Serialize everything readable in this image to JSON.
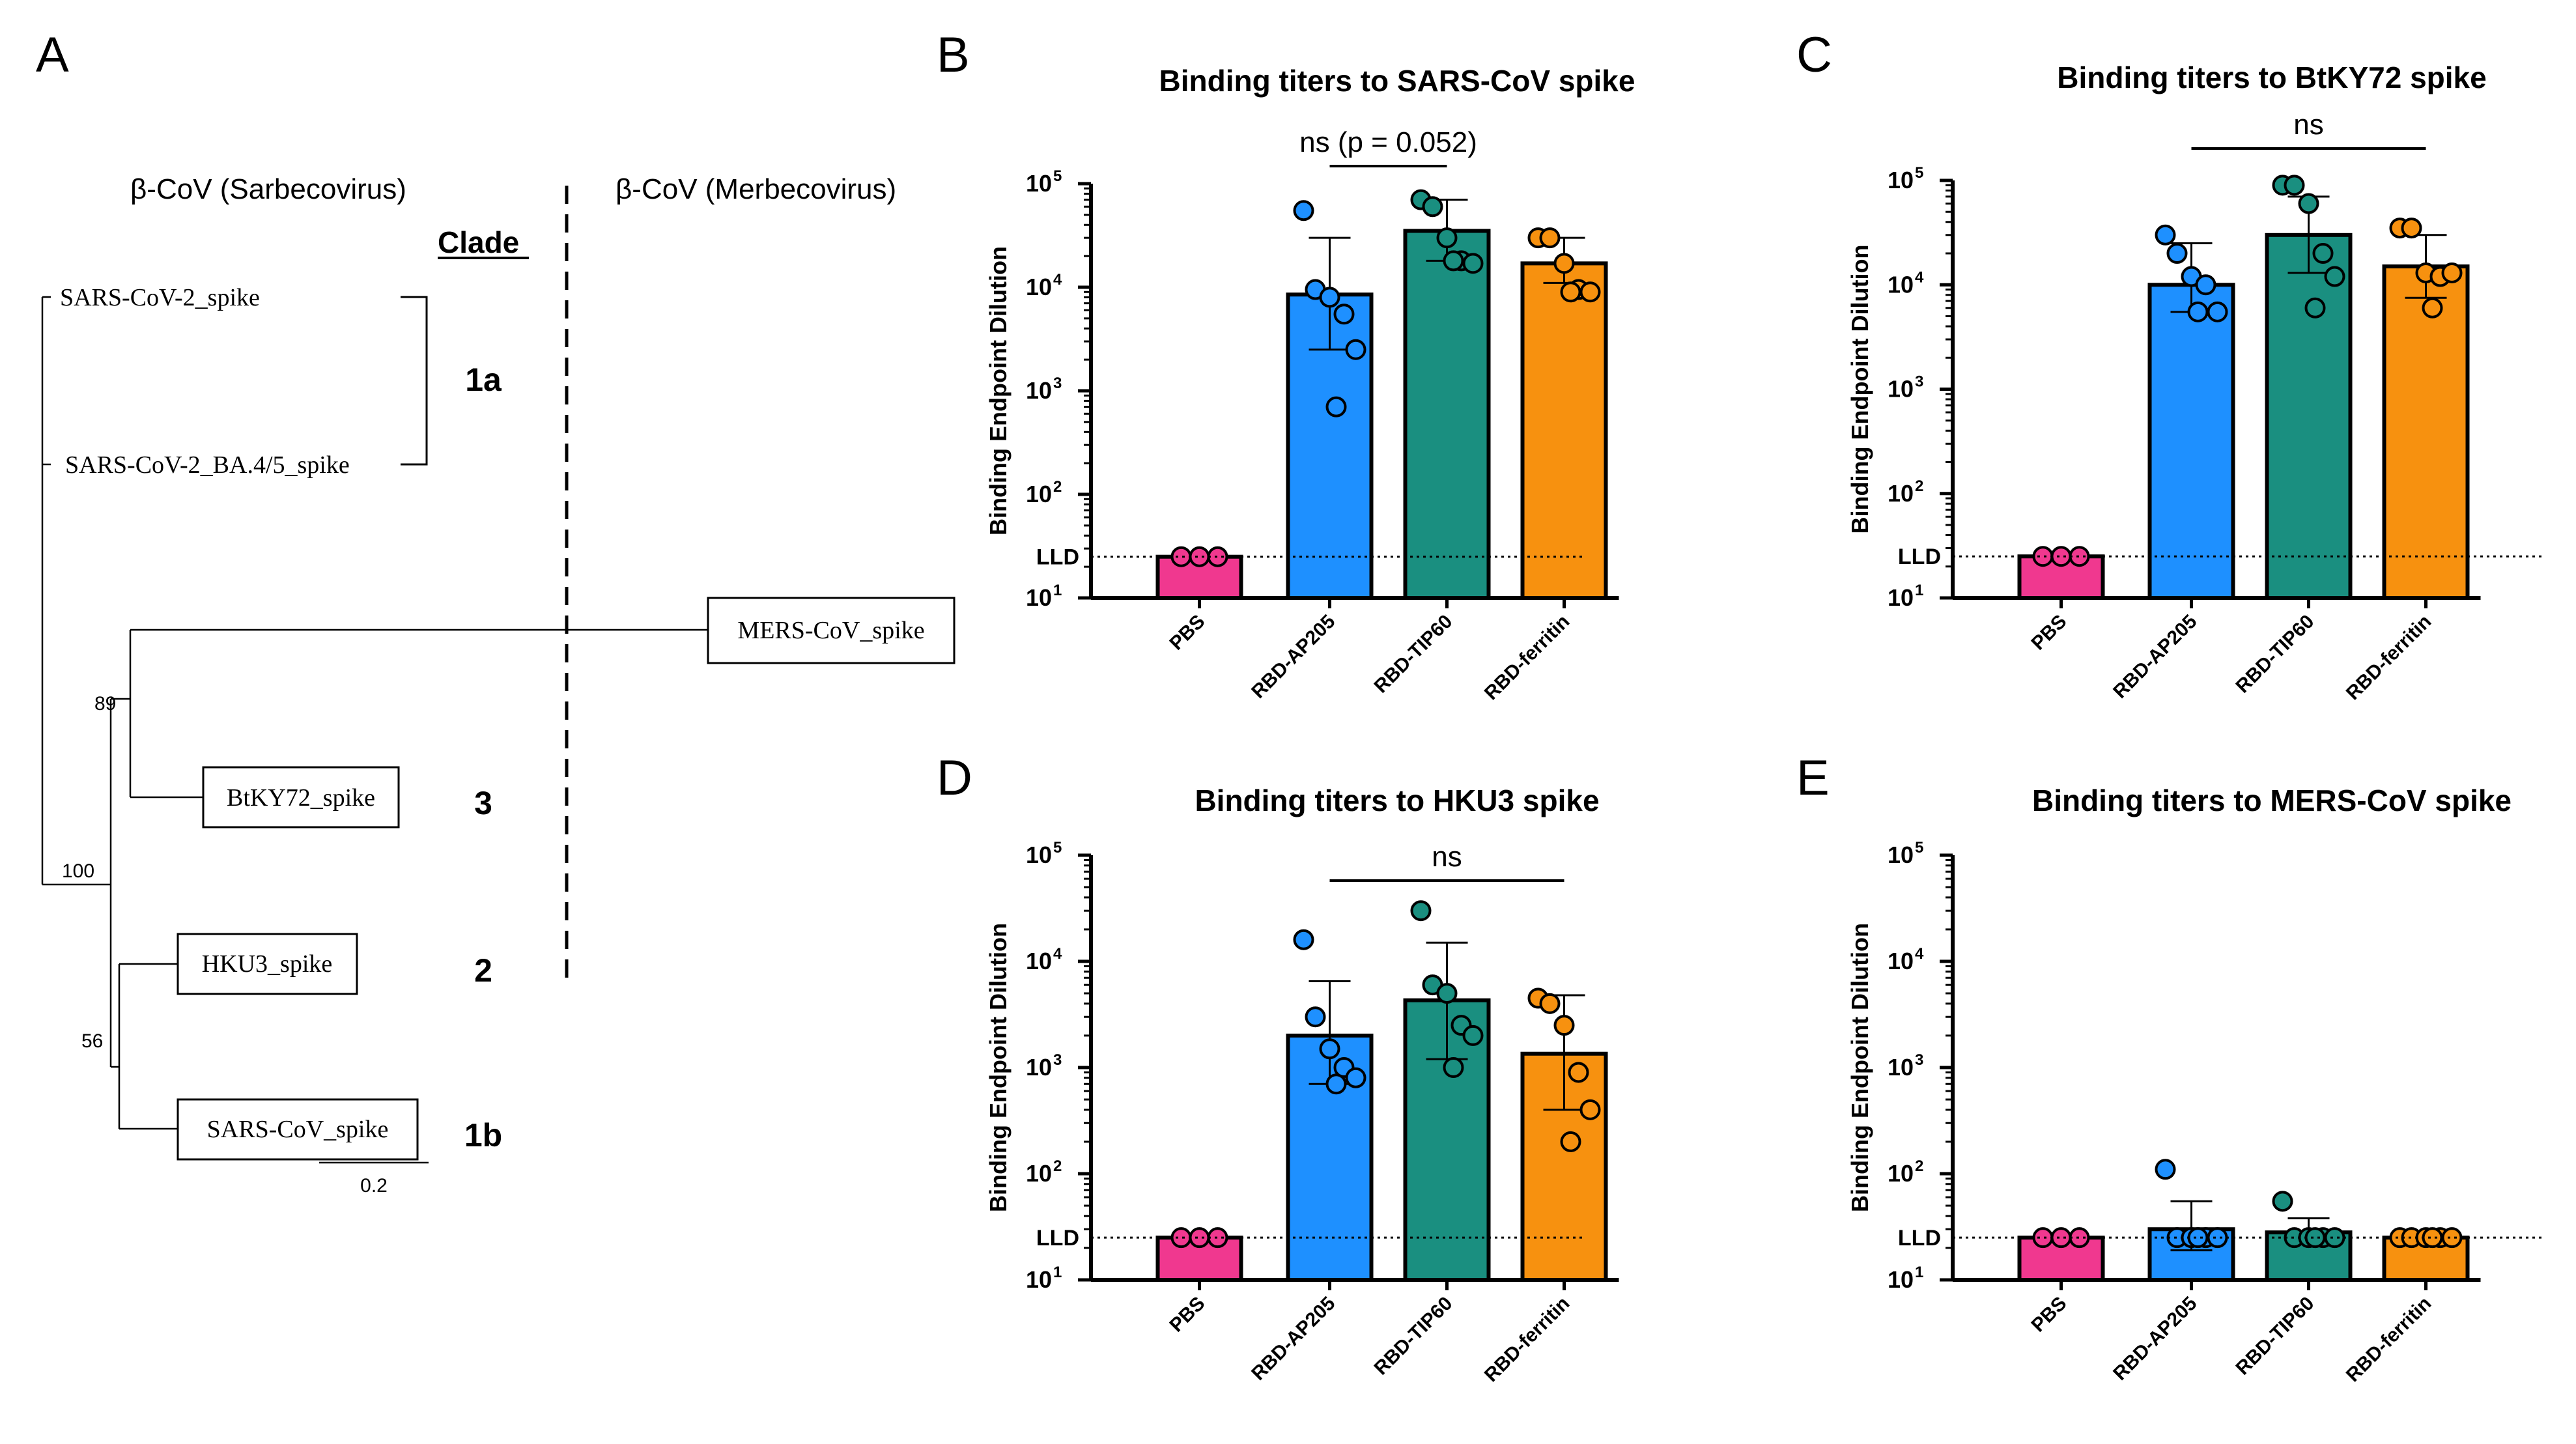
{
  "panels": {
    "A": "A",
    "B": "B",
    "C": "C",
    "D": "D",
    "E": "E"
  },
  "tree": {
    "header_left": "β-CoV (Sarbecovirus)",
    "header_right": "β-CoV (Merbecovirus)",
    "clade_header": "Clade",
    "taxa": {
      "sars2": "SARS-CoV-2_spike",
      "ba45": "SARS-CoV-2_BA.4/5_spike",
      "mers": "MERS-CoV_spike",
      "btky72": "BtKY72_spike",
      "hku3": "HKU3_spike",
      "sars1": "SARS-CoV_spike"
    },
    "clades": {
      "c1a": "1a",
      "c3": "3",
      "c2": "2",
      "c1b": "1b"
    },
    "supports": {
      "s89": "89",
      "s100": "100",
      "s56": "56"
    },
    "scale_label": "0.2"
  },
  "chart_data": [
    {
      "type": "bar",
      "panel": "B",
      "title": "Binding titers to SARS-CoV spike",
      "ylabel": "Binding Endpoint Dilution",
      "yscale": "log10",
      "ylim": [
        10,
        100000
      ],
      "lld_label": "LLD",
      "lld_value": 25,
      "categories": [
        "PBS",
        "RBD-AP205",
        "RBD-TIP60",
        "RBD-ferritin"
      ],
      "colors": [
        "#f0388f",
        "#1e90ff",
        "#1a8f80",
        "#f7910f"
      ],
      "values": [
        25,
        8500,
        35000,
        17000
      ],
      "error_low": [
        25,
        2500,
        18000,
        11000
      ],
      "error_high": [
        25,
        30000,
        70000,
        30000
      ],
      "points": [
        [
          25,
          25,
          25
        ],
        [
          55000,
          9500,
          8000,
          5500,
          2500,
          700
        ],
        [
          70000,
          60000,
          30000,
          18000,
          17000,
          18000
        ],
        [
          30000,
          30000,
          17000,
          9500,
          9000,
          9000
        ]
      ],
      "significance": [
        {
          "from": 1,
          "to": 2,
          "label": "ns (p = 0.052)"
        }
      ]
    },
    {
      "type": "bar",
      "panel": "C",
      "title": "Binding titers to BtKY72 spike",
      "ylabel": "Binding Endpoint Dilution",
      "yscale": "log10",
      "ylim": [
        10,
        100000
      ],
      "lld_label": "LLD",
      "lld_value": 25,
      "categories": [
        "PBS",
        "RBD-AP205",
        "RBD-TIP60",
        "RBD-ferritin"
      ],
      "colors": [
        "#f0388f",
        "#1e90ff",
        "#1a8f80",
        "#f7910f"
      ],
      "values": [
        25,
        10000,
        30000,
        15000
      ],
      "error_low": [
        25,
        5500,
        13000,
        7500
      ],
      "error_high": [
        25,
        25000,
        70000,
        30000
      ],
      "points": [
        [
          25,
          25,
          25
        ],
        [
          30000,
          20000,
          12000,
          10000,
          5500,
          5500
        ],
        [
          90000,
          90000,
          60000,
          20000,
          12000,
          6000
        ],
        [
          35000,
          35000,
          13000,
          12000,
          13000,
          6000
        ]
      ],
      "significance": [
        {
          "from": 1,
          "to": 3,
          "label": "ns"
        }
      ]
    },
    {
      "type": "bar",
      "panel": "D",
      "title": "Binding titers to HKU3 spike",
      "ylabel": "Binding Endpoint Dilution",
      "yscale": "log10",
      "ylim": [
        10,
        100000
      ],
      "lld_label": "LLD",
      "lld_value": 25,
      "categories": [
        "PBS",
        "RBD-AP205",
        "RBD-TIP60",
        "RBD-ferritin"
      ],
      "colors": [
        "#f0388f",
        "#1e90ff",
        "#1a8f80",
        "#f7910f"
      ],
      "values": [
        25,
        2000,
        4300,
        1350
      ],
      "error_low": [
        25,
        700,
        1200,
        400
      ],
      "error_high": [
        25,
        6500,
        15000,
        4800
      ],
      "points": [
        [
          25,
          25,
          25
        ],
        [
          16000,
          3000,
          1500,
          1000,
          800,
          700
        ],
        [
          30000,
          6000,
          5000,
          2500,
          2000,
          1000
        ],
        [
          4500,
          4000,
          2500,
          900,
          400,
          200
        ]
      ],
      "significance": [
        {
          "from": 1,
          "to": 3,
          "label": "ns"
        }
      ]
    },
    {
      "type": "bar",
      "panel": "E",
      "title": "Binding titers to MERS-CoV spike",
      "ylabel": "Binding Endpoint Dilution",
      "yscale": "log10",
      "ylim": [
        10,
        100000
      ],
      "lld_label": "LLD",
      "lld_value": 25,
      "categories": [
        "PBS",
        "RBD-AP205",
        "RBD-TIP60",
        "RBD-ferritin"
      ],
      "colors": [
        "#f0388f",
        "#1e90ff",
        "#1a8f80",
        "#f7910f"
      ],
      "values": [
        25,
        30,
        28,
        25
      ],
      "error_low": [
        25,
        19,
        22,
        25
      ],
      "error_high": [
        25,
        55,
        38,
        25
      ],
      "points": [
        [
          25,
          25,
          25
        ],
        [
          110,
          25,
          25,
          25,
          25,
          25
        ],
        [
          55,
          25,
          25,
          25,
          25,
          25
        ],
        [
          25,
          25,
          25,
          25,
          25,
          25
        ]
      ],
      "significance": []
    }
  ]
}
